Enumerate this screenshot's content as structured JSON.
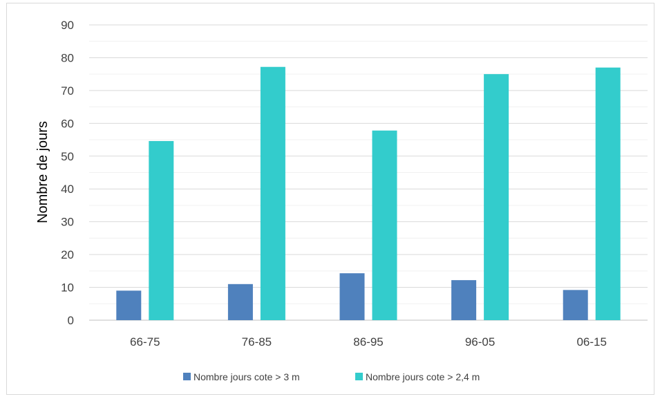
{
  "chart_data": {
    "type": "bar",
    "ylabel": "Nombre de jours",
    "categories": [
      "66-75",
      "76-85",
      "86-95",
      "96-05",
      "06-15"
    ],
    "series": [
      {
        "name": "Nombre jours cote > 3 m",
        "color": "#4f81bd",
        "values": [
          9,
          11,
          14.3,
          12.2,
          9.2
        ]
      },
      {
        "name": "Nombre jours cote > 2,4 m",
        "color": "#33cccc",
        "values": [
          54.6,
          77.2,
          57.8,
          75,
          77
        ]
      }
    ],
    "ylim": [
      0,
      90
    ],
    "yticks": [
      0,
      10,
      20,
      30,
      40,
      50,
      60,
      70,
      80,
      90
    ],
    "minor_gridlines": true,
    "legend_position": "bottom"
  }
}
